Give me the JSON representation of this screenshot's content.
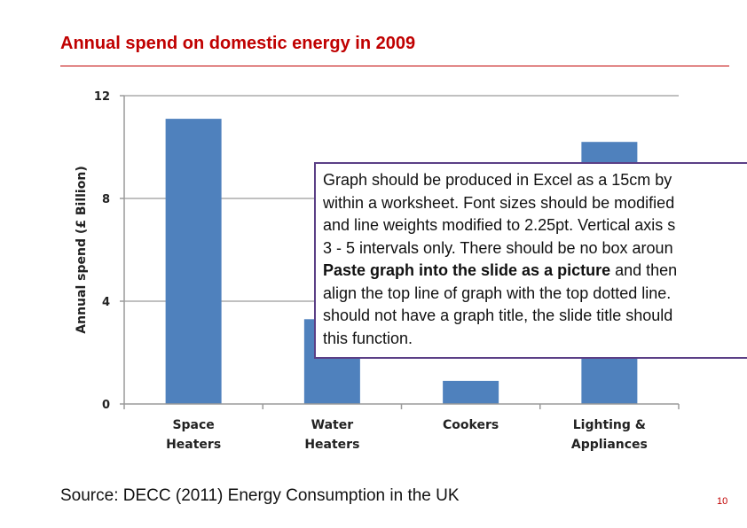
{
  "slide": {
    "title": "Annual spend on domestic energy in 2009",
    "source": "Source: DECC (2011) Energy Consumption in the UK",
    "page_number": "10",
    "accent_color": "#c00000"
  },
  "note": {
    "lines": [
      "Graph should be produced in Excel as a 15cm by",
      "within a worksheet. Font sizes should be modified",
      "and line weights modified to 2.25pt. Vertical axis s",
      "3 - 5 intervals only. There should be no box aroun",
      "align the top line of graph with the top dotted line.",
      "should not have a graph title, the slide title should",
      "this function."
    ],
    "bold_line_strong": "Paste graph into the slide as a picture",
    "bold_line_rest": " and then"
  },
  "chart_data": {
    "type": "bar",
    "title": "",
    "xlabel": "",
    "ylabel": "Annual spend (£ Billion)",
    "ylim": [
      0,
      12
    ],
    "yticks": [
      0,
      4,
      8,
      12
    ],
    "grid": true,
    "bar_color": "#4f81bd",
    "categories": [
      [
        "Space",
        "Heaters"
      ],
      [
        "Water",
        "Heaters"
      ],
      [
        "Cookers"
      ],
      [
        "Lighting &",
        "Appliances"
      ]
    ],
    "values": [
      11.1,
      3.3,
      0.9,
      10.2
    ]
  }
}
